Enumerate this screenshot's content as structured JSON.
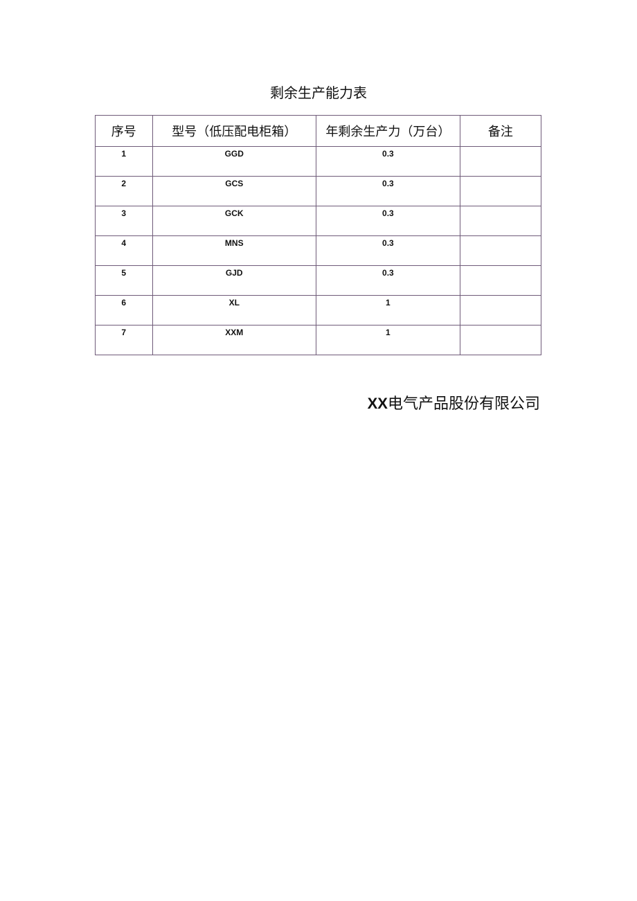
{
  "title": "剩余生产能力表",
  "table": {
    "headers": [
      "序号",
      "型号（低压配电柜箱）",
      "年剩余生产力（万台）",
      "备注"
    ],
    "rows": [
      [
        "1",
        "GGD",
        "0.3",
        ""
      ],
      [
        "2",
        "GCS",
        "0.3",
        ""
      ],
      [
        "3",
        "GCK",
        "0.3",
        ""
      ],
      [
        "4",
        "MNS",
        "0.3",
        ""
      ],
      [
        "5",
        "GJD",
        "0.3",
        ""
      ],
      [
        "6",
        "XL",
        "1",
        ""
      ],
      [
        "7",
        "XXM",
        "1",
        ""
      ]
    ]
  },
  "company": {
    "prefix": "XX",
    "name": "电气产品股份有限公司"
  }
}
